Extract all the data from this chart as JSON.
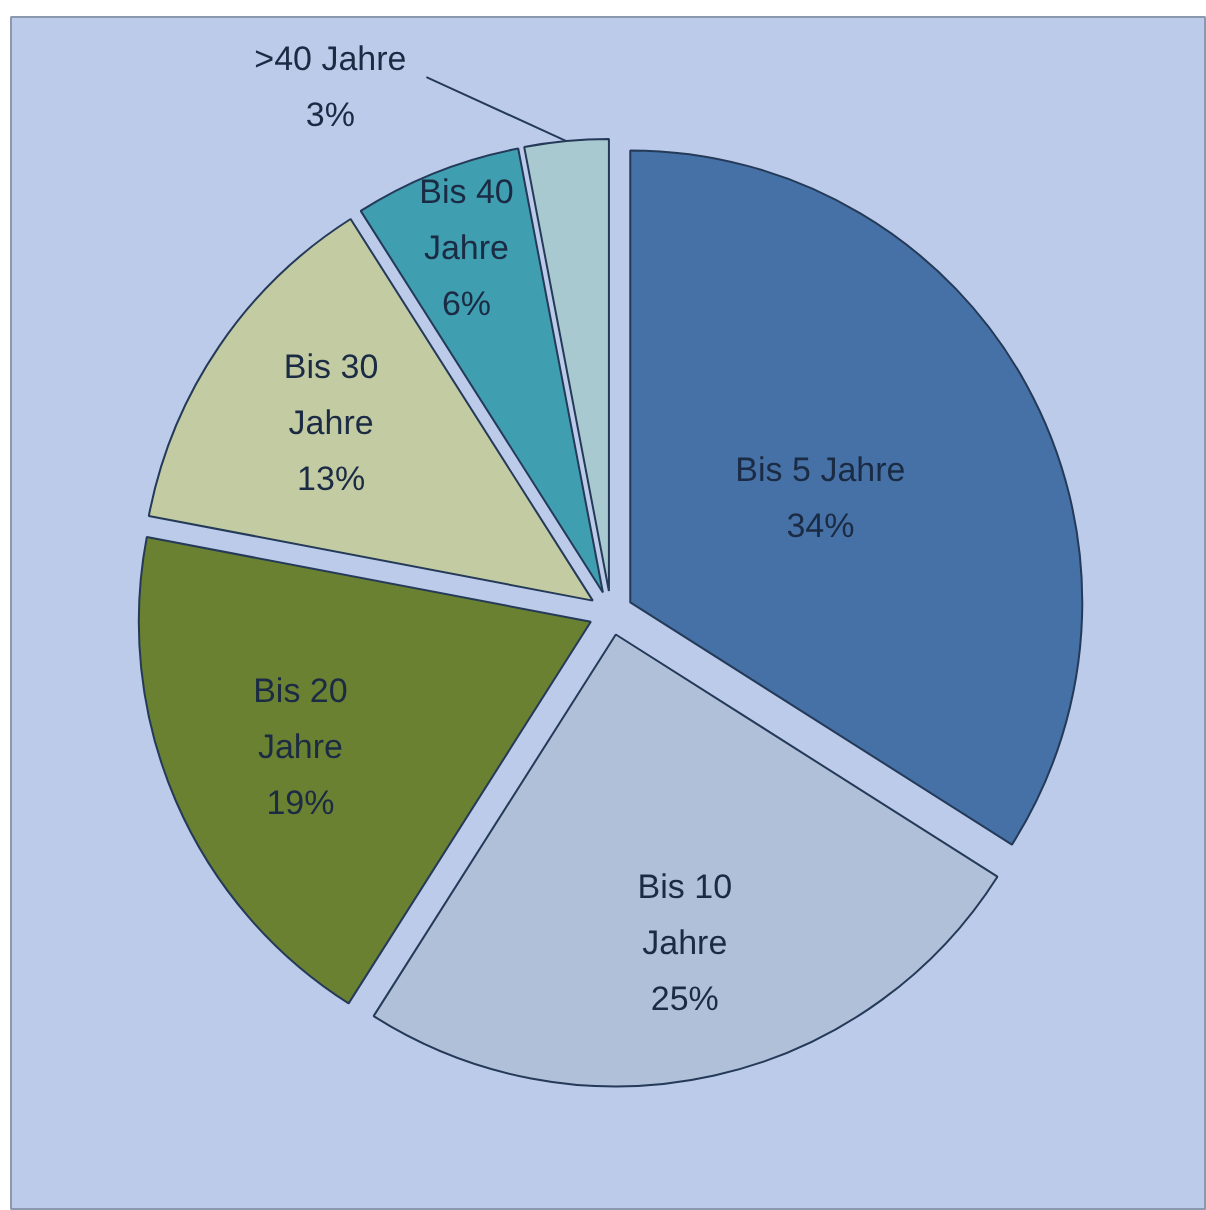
{
  "chart_data": {
    "type": "pie",
    "categories": [
      "Bis 5 Jahre",
      "Bis 10 Jahre",
      "Bis 20 Jahre",
      "Bis 30 Jahre",
      "Bis 40 Jahre",
      ">40 Jahre"
    ],
    "values": [
      34,
      25,
      19,
      13,
      6,
      3
    ],
    "colors": [
      "#4671a6",
      "#afc0d8",
      "#6b8132",
      "#c3cba3",
      "#3f9eb0",
      "#a9c9d1"
    ],
    "value_labels": [
      "34%",
      "25%",
      "19%",
      "13%",
      "6%",
      "3%"
    ]
  }
}
